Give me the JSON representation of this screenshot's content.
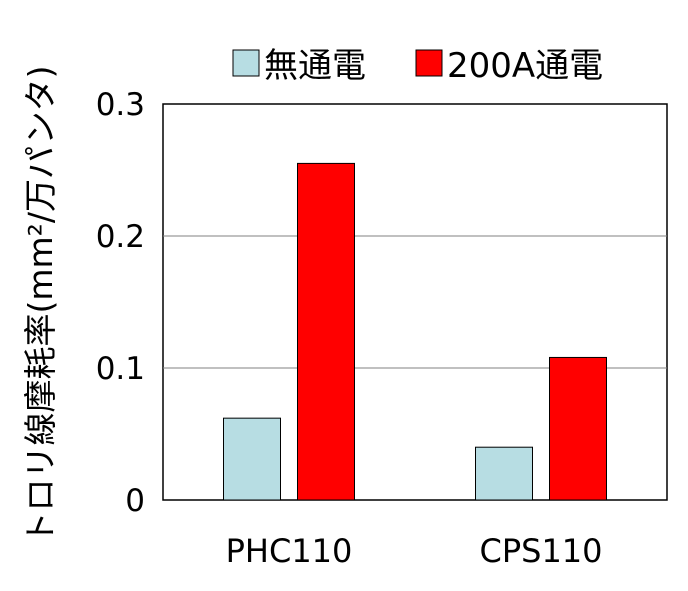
{
  "chart_data": {
    "type": "bar",
    "title": "",
    "xlabel": "",
    "ylabel": "トロリ線摩耗率(mm²/万パンタ)",
    "categories": [
      "PHC110",
      "CPS110"
    ],
    "series": [
      {
        "name": "無通電",
        "values": [
          0.062,
          0.04
        ],
        "color": "#b7dde3"
      },
      {
        "name": "200A通電",
        "values": [
          0.255,
          0.108
        ],
        "color": "#ff0000"
      }
    ],
    "ylim": [
      0,
      0.3
    ],
    "yticks": [
      0,
      0.1,
      0.2,
      0.3
    ],
    "ytick_labels": [
      "0",
      "0.1",
      "0.2",
      "0.3"
    ],
    "grid": true,
    "legend_position": "top"
  }
}
